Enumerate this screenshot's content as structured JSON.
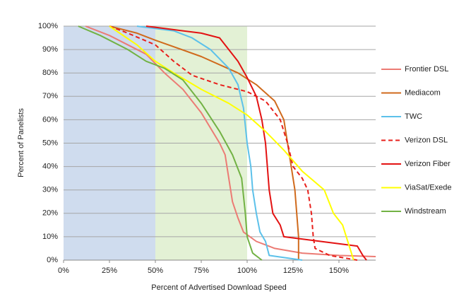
{
  "chart_data": {
    "type": "line",
    "x_label": "Percent of Advertised Download Speed",
    "y_label": "Percent of Panelists",
    "xlim": [
      0,
      170
    ],
    "xticks": [
      {
        "value": 0,
        "label": "0%"
      },
      {
        "value": 25,
        "label": "25%"
      },
      {
        "value": 50,
        "label": "50%"
      },
      {
        "value": 75,
        "label": "75%"
      },
      {
        "value": 100,
        "label": "100%"
      },
      {
        "value": 125,
        "label": "125%"
      },
      {
        "value": 150,
        "label": "150%"
      }
    ],
    "ylim": [
      0,
      100
    ],
    "yticks": [
      {
        "value": 0,
        "label": "0%"
      },
      {
        "value": 10,
        "label": "10%"
      },
      {
        "value": 20,
        "label": "20%"
      },
      {
        "value": 30,
        "label": "30%"
      },
      {
        "value": 40,
        "label": "40%"
      },
      {
        "value": 50,
        "label": "50%"
      },
      {
        "value": 60,
        "label": "60%"
      },
      {
        "value": 70,
        "label": "70%"
      },
      {
        "value": 80,
        "label": "80%"
      },
      {
        "value": 90,
        "label": "90%"
      },
      {
        "value": 100,
        "label": "100%"
      }
    ],
    "grid": true,
    "legend": "right",
    "shaded_ranges": [
      {
        "from": 0,
        "to": 50,
        "color": "#cfdcee"
      },
      {
        "from": 50,
        "to": 100,
        "color": "#e3f1d5"
      }
    ],
    "series": [
      {
        "name": "Frontier DSL",
        "color": "#ec7b74",
        "dashed": false,
        "x": [
          12,
          25,
          45,
          55,
          65,
          75,
          85,
          88,
          90,
          92,
          95,
          98,
          105,
          115,
          130,
          150,
          170
        ],
        "values": [
          100,
          96,
          88,
          80,
          73,
          63,
          50,
          45,
          35,
          25,
          18,
          12,
          8,
          5,
          3,
          2,
          1.5
        ]
      },
      {
        "name": "Mediacom",
        "color": "#d06a1c",
        "dashed": false,
        "x": [
          25,
          40,
          50,
          75,
          95,
          105,
          115,
          120,
          122,
          124,
          126,
          127,
          128,
          128,
          128
        ],
        "values": [
          100,
          97,
          94,
          87,
          80,
          75,
          68,
          60,
          50,
          40,
          30,
          20,
          10,
          2,
          0
        ]
      },
      {
        "name": "TWC",
        "color": "#5cc1ea",
        "dashed": false,
        "x": [
          40,
          60,
          70,
          80,
          90,
          95,
          98,
          100,
          102,
          103,
          105,
          107,
          110,
          112,
          130
        ],
        "values": [
          100,
          98,
          95,
          90,
          82,
          75,
          65,
          50,
          40,
          30,
          20,
          12,
          8,
          2,
          0
        ]
      },
      {
        "name": "Verizon DSL",
        "color": "#e8201c",
        "dashed": true,
        "x": [
          25,
          35,
          50,
          60,
          70,
          85,
          100,
          110,
          118,
          122,
          125,
          130,
          133,
          135,
          136,
          137,
          145,
          160
        ],
        "values": [
          100,
          97,
          92,
          85,
          79,
          75,
          72,
          68,
          60,
          50,
          40,
          35,
          30,
          20,
          10,
          5,
          2,
          0
        ]
      },
      {
        "name": "Verizon Fiber",
        "color": "#e31212",
        "dashed": false,
        "x": [
          45,
          55,
          75,
          85,
          95,
          100,
          105,
          108,
          110,
          111,
          112,
          114,
          118,
          120,
          140,
          160,
          163,
          165
        ],
        "values": [
          100,
          99,
          97,
          95,
          85,
          78,
          70,
          60,
          50,
          40,
          30,
          20,
          15,
          10,
          8,
          6,
          2,
          0
        ]
      },
      {
        "name": "ViaSat/Exede",
        "color": "#ffff00",
        "dashed": false,
        "x": [
          25,
          40,
          50,
          60,
          75,
          90,
          100,
          110,
          120,
          130,
          142,
          147,
          152,
          154,
          156,
          158
        ],
        "values": [
          100,
          92,
          85,
          80,
          73,
          67,
          62,
          55,
          47,
          38,
          30,
          20,
          15,
          10,
          5,
          0
        ]
      },
      {
        "name": "Windstream",
        "color": "#72b244",
        "dashed": false,
        "x": [
          8,
          20,
          35,
          45,
          55,
          65,
          75,
          85,
          92,
          97,
          99,
          100,
          103,
          108
        ],
        "values": [
          100,
          96,
          90,
          85,
          82,
          77,
          67,
          55,
          45,
          35,
          20,
          10,
          3,
          0
        ]
      }
    ]
  }
}
